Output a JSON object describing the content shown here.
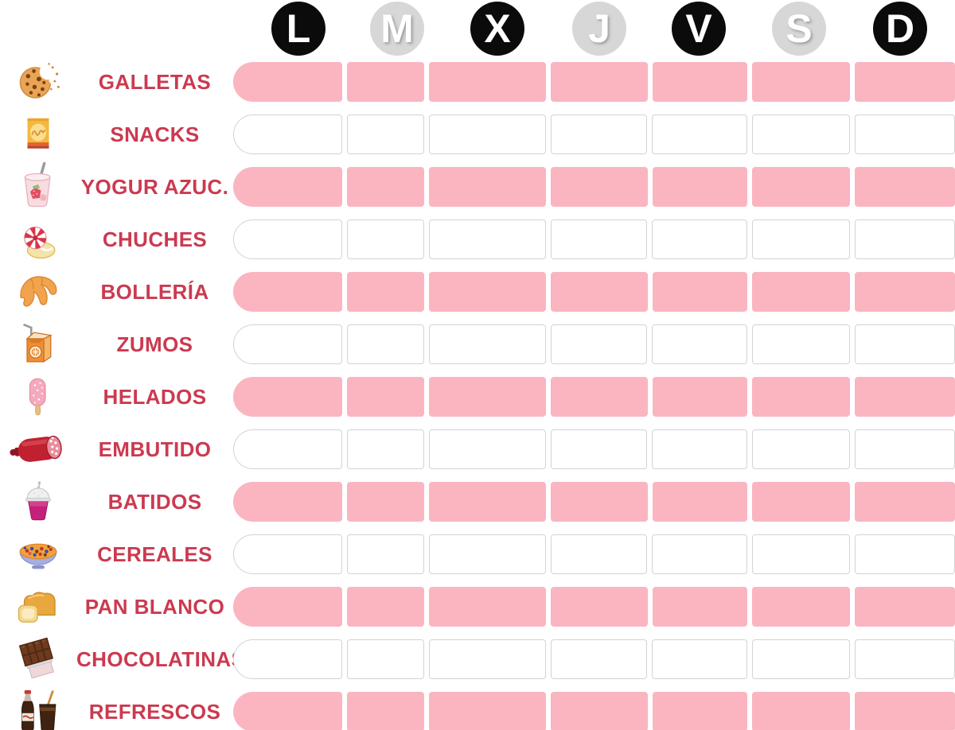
{
  "header": {
    "days": [
      {
        "label": "L",
        "variant": "black"
      },
      {
        "label": "M",
        "variant": "gray"
      },
      {
        "label": "X",
        "variant": "black"
      },
      {
        "label": "J",
        "variant": "gray"
      },
      {
        "label": "V",
        "variant": "black"
      },
      {
        "label": "S",
        "variant": "gray"
      },
      {
        "label": "D",
        "variant": "black"
      }
    ]
  },
  "rows": [
    {
      "label": "GALLETAS",
      "icon": "cookie-icon",
      "filled": true,
      "cells": [
        true,
        true,
        true,
        true,
        true,
        true,
        true
      ]
    },
    {
      "label": "SNACKS",
      "icon": "chips-bag-icon",
      "filled": false,
      "cells": [
        false,
        false,
        false,
        false,
        false,
        false,
        false
      ]
    },
    {
      "label": "YOGUR AZUC.",
      "icon": "yogurt-icon",
      "filled": true,
      "cells": [
        true,
        true,
        true,
        true,
        true,
        true,
        true
      ]
    },
    {
      "label": "CHUCHES",
      "icon": "candy-icon",
      "filled": false,
      "cells": [
        false,
        false,
        false,
        false,
        false,
        false,
        false
      ]
    },
    {
      "label": "BOLLERÍA",
      "icon": "croissant-icon",
      "filled": true,
      "cells": [
        true,
        true,
        true,
        true,
        true,
        true,
        true
      ]
    },
    {
      "label": "ZUMOS",
      "icon": "juice-box-icon",
      "filled": false,
      "cells": [
        false,
        false,
        false,
        false,
        false,
        false,
        false
      ]
    },
    {
      "label": "HELADOS",
      "icon": "popsicle-icon",
      "filled": true,
      "cells": [
        true,
        true,
        true,
        true,
        true,
        true,
        true
      ]
    },
    {
      "label": "EMBUTIDO",
      "icon": "salami-icon",
      "filled": false,
      "cells": [
        false,
        false,
        false,
        false,
        false,
        false,
        false
      ]
    },
    {
      "label": "BATIDOS",
      "icon": "smoothie-icon",
      "filled": true,
      "cells": [
        true,
        true,
        true,
        true,
        true,
        true,
        true
      ]
    },
    {
      "label": "CEREALES",
      "icon": "cereal-bowl-icon",
      "filled": false,
      "cells": [
        false,
        false,
        false,
        false,
        false,
        false,
        false
      ]
    },
    {
      "label": "PAN BLANCO",
      "icon": "bread-icon",
      "filled": true,
      "cells": [
        true,
        true,
        true,
        true,
        true,
        true,
        true
      ]
    },
    {
      "label": "CHOCOLATINAS",
      "icon": "chocolate-icon",
      "filled": false,
      "cells": [
        false,
        false,
        false,
        false,
        false,
        false,
        false
      ]
    },
    {
      "label": "REFRESCOS",
      "icon": "soda-icon",
      "filled": true,
      "cells": [
        true,
        true,
        true,
        true,
        true,
        true,
        true
      ]
    }
  ],
  "colors": {
    "track_filled": "#FAB5C1",
    "track_empty_border": "#D3D3D3",
    "label_red": "#CB3A50",
    "day_circle_black": "#0B0B0B",
    "day_circle_gray": "#D7D7D7",
    "day_letter": "#FFFFFF"
  },
  "chart_data": {
    "type": "table",
    "title": "",
    "columns": [
      "L",
      "M",
      "X",
      "J",
      "V",
      "S",
      "D"
    ],
    "rows": [
      {
        "category": "GALLETAS",
        "marked": [
          1,
          1,
          1,
          1,
          1,
          1,
          1
        ]
      },
      {
        "category": "SNACKS",
        "marked": [
          0,
          0,
          0,
          0,
          0,
          0,
          0
        ]
      },
      {
        "category": "YOGUR AZUC.",
        "marked": [
          1,
          1,
          1,
          1,
          1,
          1,
          1
        ]
      },
      {
        "category": "CHUCHES",
        "marked": [
          0,
          0,
          0,
          0,
          0,
          0,
          0
        ]
      },
      {
        "category": "BOLLERÍA",
        "marked": [
          1,
          1,
          1,
          1,
          1,
          1,
          1
        ]
      },
      {
        "category": "ZUMOS",
        "marked": [
          0,
          0,
          0,
          0,
          0,
          0,
          0
        ]
      },
      {
        "category": "HELADOS",
        "marked": [
          1,
          1,
          1,
          1,
          1,
          1,
          1
        ]
      },
      {
        "category": "EMBUTIDO",
        "marked": [
          0,
          0,
          0,
          0,
          0,
          0,
          0
        ]
      },
      {
        "category": "BATIDOS",
        "marked": [
          1,
          1,
          1,
          1,
          1,
          1,
          1
        ]
      },
      {
        "category": "CEREALES",
        "marked": [
          0,
          0,
          0,
          0,
          0,
          0,
          0
        ]
      },
      {
        "category": "PAN BLANCO",
        "marked": [
          1,
          1,
          1,
          1,
          1,
          1,
          1
        ]
      },
      {
        "category": "CHOCOLATINAS",
        "marked": [
          0,
          0,
          0,
          0,
          0,
          0,
          0
        ]
      },
      {
        "category": "REFRESCOS",
        "marked": [
          1,
          1,
          1,
          1,
          1,
          1,
          1
        ]
      }
    ],
    "legend": {
      "marked_fill": "#FAB5C1",
      "unmarked_fill": "#FFFFFF"
    },
    "grid": "segmented-tracks",
    "notes": "marked=1 rendered as pink segment, marked=0 rendered as white outlined segment"
  }
}
